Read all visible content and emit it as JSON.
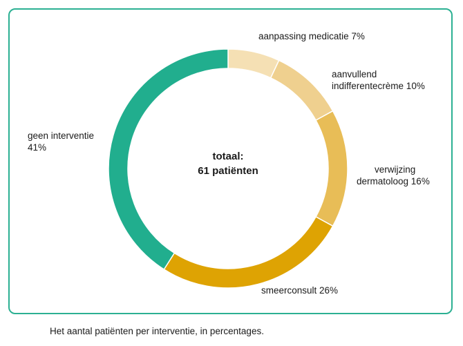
{
  "chart_data": {
    "type": "pie",
    "title": "",
    "center_label": [
      "totaal:",
      "61 patiënten"
    ],
    "caption": "Het aantal patiënten per interventie, in percentages.",
    "slices": [
      {
        "label": [
          "aanpassing medicatie 7%"
        ],
        "value": 7,
        "color": "#f5e0b4"
      },
      {
        "label": [
          "aanvullend",
          "indifferentecrème 10%"
        ],
        "value": 10,
        "color": "#efd08f"
      },
      {
        "label": [
          "verwijzing",
          "dermatoloog 16%"
        ],
        "value": 16,
        "color": "#e8bd57"
      },
      {
        "label": [
          "smeerconsult 26%"
        ],
        "value": 26,
        "color": "#dea303"
      },
      {
        "label": [
          "geen interventie",
          "41%"
        ],
        "value": 41,
        "color": "#21ae8e"
      }
    ]
  },
  "colors": {
    "frame_border": "#2bb092",
    "slice_separator": "#ffffff"
  }
}
